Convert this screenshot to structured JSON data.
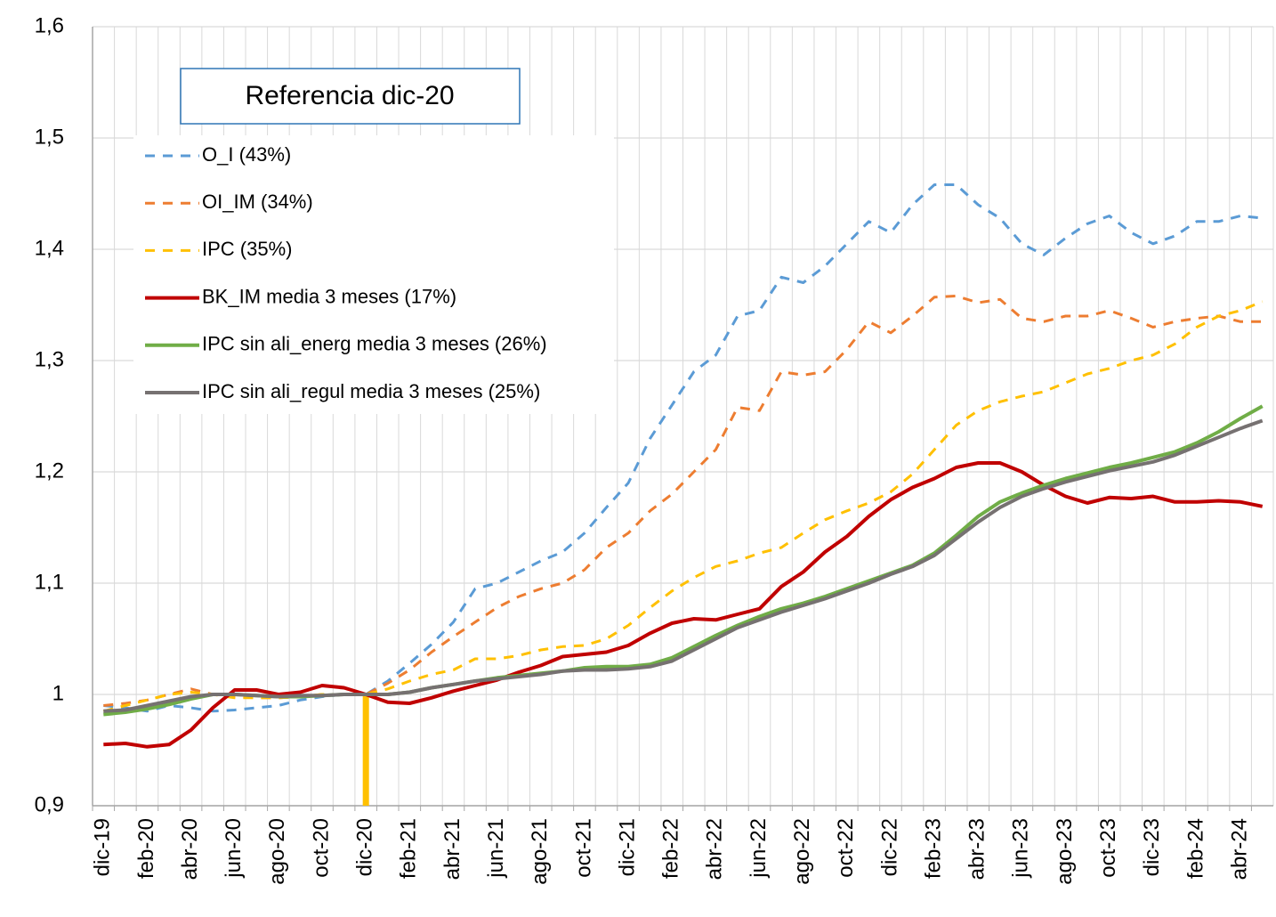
{
  "chart_data": {
    "type": "line",
    "annotation": "Referencia dic-20",
    "categories": [
      "dic-19",
      null,
      "feb-20",
      null,
      "abr-20",
      null,
      "jun-20",
      null,
      "ago-20",
      null,
      "oct-20",
      null,
      "dic-20",
      null,
      "feb-21",
      null,
      "abr-21",
      null,
      "jun-21",
      null,
      "ago-21",
      null,
      "oct-21",
      null,
      "dic-21",
      null,
      "feb-22",
      null,
      "abr-22",
      null,
      "jun-22",
      null,
      "ago-22",
      null,
      "oct-22",
      null,
      "dic-22",
      null,
      "feb-23",
      null,
      "abr-23",
      null,
      "jun-23",
      null,
      "ago-23",
      null,
      "oct-23",
      null,
      "dic-23",
      null,
      "feb-24",
      null,
      "abr-24",
      null
    ],
    "ylim": [
      0.9,
      1.6
    ],
    "yticks": [
      {
        "value": 0.9,
        "label": "0,9"
      },
      1,
      {
        "value": 1.1,
        "label": "1,1"
      },
      {
        "value": 1.2,
        "label": "1,2"
      },
      {
        "value": 1.3,
        "label": "1,3"
      },
      {
        "value": 1.4,
        "label": "1,4"
      },
      {
        "value": 1.5,
        "label": "1,5"
      },
      {
        "value": 1.6,
        "label": "1,6"
      }
    ],
    "grid": true,
    "legend": "upper left",
    "series": [
      {
        "name": "O_I (43%)",
        "color": "#5b9bd5",
        "dashed": true,
        "values": [
          0.99,
          0.988,
          0.985,
          0.99,
          0.988,
          0.985,
          0.986,
          0.988,
          0.99,
          0.995,
          0.998,
          1.0,
          1.0,
          1.012,
          1.028,
          1.045,
          1.065,
          1.095,
          1.1,
          1.11,
          1.12,
          1.128,
          1.145,
          1.168,
          1.19,
          1.23,
          1.26,
          1.29,
          1.305,
          1.34,
          1.345,
          1.375,
          1.37,
          1.385,
          1.405,
          1.425,
          1.415,
          1.44,
          1.458,
          1.458,
          1.44,
          1.428,
          1.405,
          1.395,
          1.41,
          1.423,
          1.43,
          1.415,
          1.405,
          1.412,
          1.425,
          1.425,
          1.43,
          1.428
        ]
      },
      {
        "name": "OI_IM (34%)",
        "color": "#ed7d31",
        "dashed": true,
        "values": [
          0.99,
          0.992,
          0.995,
          1.0,
          1.005,
          1.0,
          0.998,
          0.997,
          0.997,
          0.998,
          1.0,
          1.0,
          1.0,
          1.01,
          1.022,
          1.038,
          1.052,
          1.065,
          1.078,
          1.088,
          1.095,
          1.1,
          1.112,
          1.132,
          1.145,
          1.165,
          1.18,
          1.2,
          1.22,
          1.258,
          1.255,
          1.29,
          1.287,
          1.29,
          1.31,
          1.335,
          1.325,
          1.34,
          1.357,
          1.358,
          1.352,
          1.355,
          1.338,
          1.335,
          1.34,
          1.34,
          1.345,
          1.338,
          1.33,
          1.335,
          1.338,
          1.34,
          1.335,
          1.335
        ]
      },
      {
        "name": "IPC (35%)",
        "color": "#ffc000",
        "dashed": true,
        "values": [
          0.985,
          0.99,
          0.995,
          1.0,
          1.002,
          1.0,
          0.997,
          0.997,
          0.997,
          0.998,
          1.0,
          1.0,
          1.0,
          1.005,
          1.012,
          1.018,
          1.022,
          1.032,
          1.032,
          1.035,
          1.04,
          1.043,
          1.044,
          1.05,
          1.062,
          1.078,
          1.093,
          1.105,
          1.115,
          1.12,
          1.127,
          1.132,
          1.145,
          1.157,
          1.165,
          1.172,
          1.182,
          1.198,
          1.22,
          1.242,
          1.255,
          1.263,
          1.268,
          1.272,
          1.28,
          1.288,
          1.293,
          1.3,
          1.305,
          1.315,
          1.33,
          1.34,
          1.345,
          1.353
        ]
      },
      {
        "name": "BK_IM media 3 meses (17%)",
        "color": "#c00000",
        "dashed": false,
        "values": [
          0.955,
          0.956,
          0.953,
          0.955,
          0.968,
          0.988,
          1.004,
          1.004,
          1.0,
          1.002,
          1.008,
          1.006,
          1.0,
          0.993,
          0.992,
          0.997,
          1.003,
          1.008,
          1.013,
          1.02,
          1.026,
          1.034,
          1.036,
          1.038,
          1.044,
          1.055,
          1.064,
          1.068,
          1.067,
          1.072,
          1.077,
          1.097,
          1.11,
          1.128,
          1.142,
          1.16,
          1.175,
          1.186,
          1.194,
          1.204,
          1.208,
          1.208,
          1.2,
          1.188,
          1.178,
          1.172,
          1.177,
          1.176,
          1.178,
          1.173,
          1.173,
          1.174,
          1.173,
          1.169
        ]
      },
      {
        "name": "IPC sin ali_energ media 3 meses (26%)",
        "color": "#70ad47",
        "dashed": false,
        "values": [
          0.982,
          0.984,
          0.987,
          0.991,
          0.996,
          1.0,
          1.0,
          0.999,
          0.998,
          0.998,
          0.999,
          1.0,
          1.0,
          1.0,
          1.002,
          1.006,
          1.009,
          1.012,
          1.015,
          1.017,
          1.019,
          1.021,
          1.024,
          1.025,
          1.025,
          1.027,
          1.033,
          1.043,
          1.053,
          1.062,
          1.07,
          1.077,
          1.082,
          1.088,
          1.095,
          1.102,
          1.109,
          1.116,
          1.127,
          1.143,
          1.16,
          1.173,
          1.181,
          1.188,
          1.194,
          1.199,
          1.204,
          1.208,
          1.213,
          1.218,
          1.226,
          1.236,
          1.248,
          1.259
        ]
      },
      {
        "name": "IPC sin ali_regul media 3 meses (25%)",
        "color": "#767171",
        "dashed": false,
        "values": [
          0.985,
          0.986,
          0.99,
          0.994,
          0.998,
          1.0,
          1.0,
          0.999,
          0.998,
          0.999,
          0.999,
          1.0,
          1.0,
          1.0,
          1.002,
          1.006,
          1.009,
          1.012,
          1.014,
          1.016,
          1.018,
          1.021,
          1.022,
          1.022,
          1.023,
          1.025,
          1.03,
          1.04,
          1.05,
          1.06,
          1.067,
          1.074,
          1.08,
          1.086,
          1.093,
          1.1,
          1.108,
          1.115,
          1.125,
          1.14,
          1.155,
          1.168,
          1.178,
          1.185,
          1.191,
          1.196,
          1.201,
          1.205,
          1.209,
          1.215,
          1.223,
          1.231,
          1.239,
          1.246
        ]
      },
      {
        "type": "bar",
        "color": "#ffc000",
        "values": [
          null,
          null,
          null,
          null,
          null,
          null,
          null,
          null,
          null,
          null,
          null,
          null,
          1,
          null,
          null,
          null,
          null,
          null,
          null,
          null,
          null,
          null,
          null,
          null,
          null,
          null,
          null,
          null,
          null,
          null,
          null,
          null,
          null,
          null,
          null,
          null,
          null,
          null,
          null,
          null,
          null,
          null,
          null,
          null,
          null,
          null,
          null,
          null,
          null,
          null,
          null,
          null,
          null,
          null
        ]
      }
    ]
  }
}
